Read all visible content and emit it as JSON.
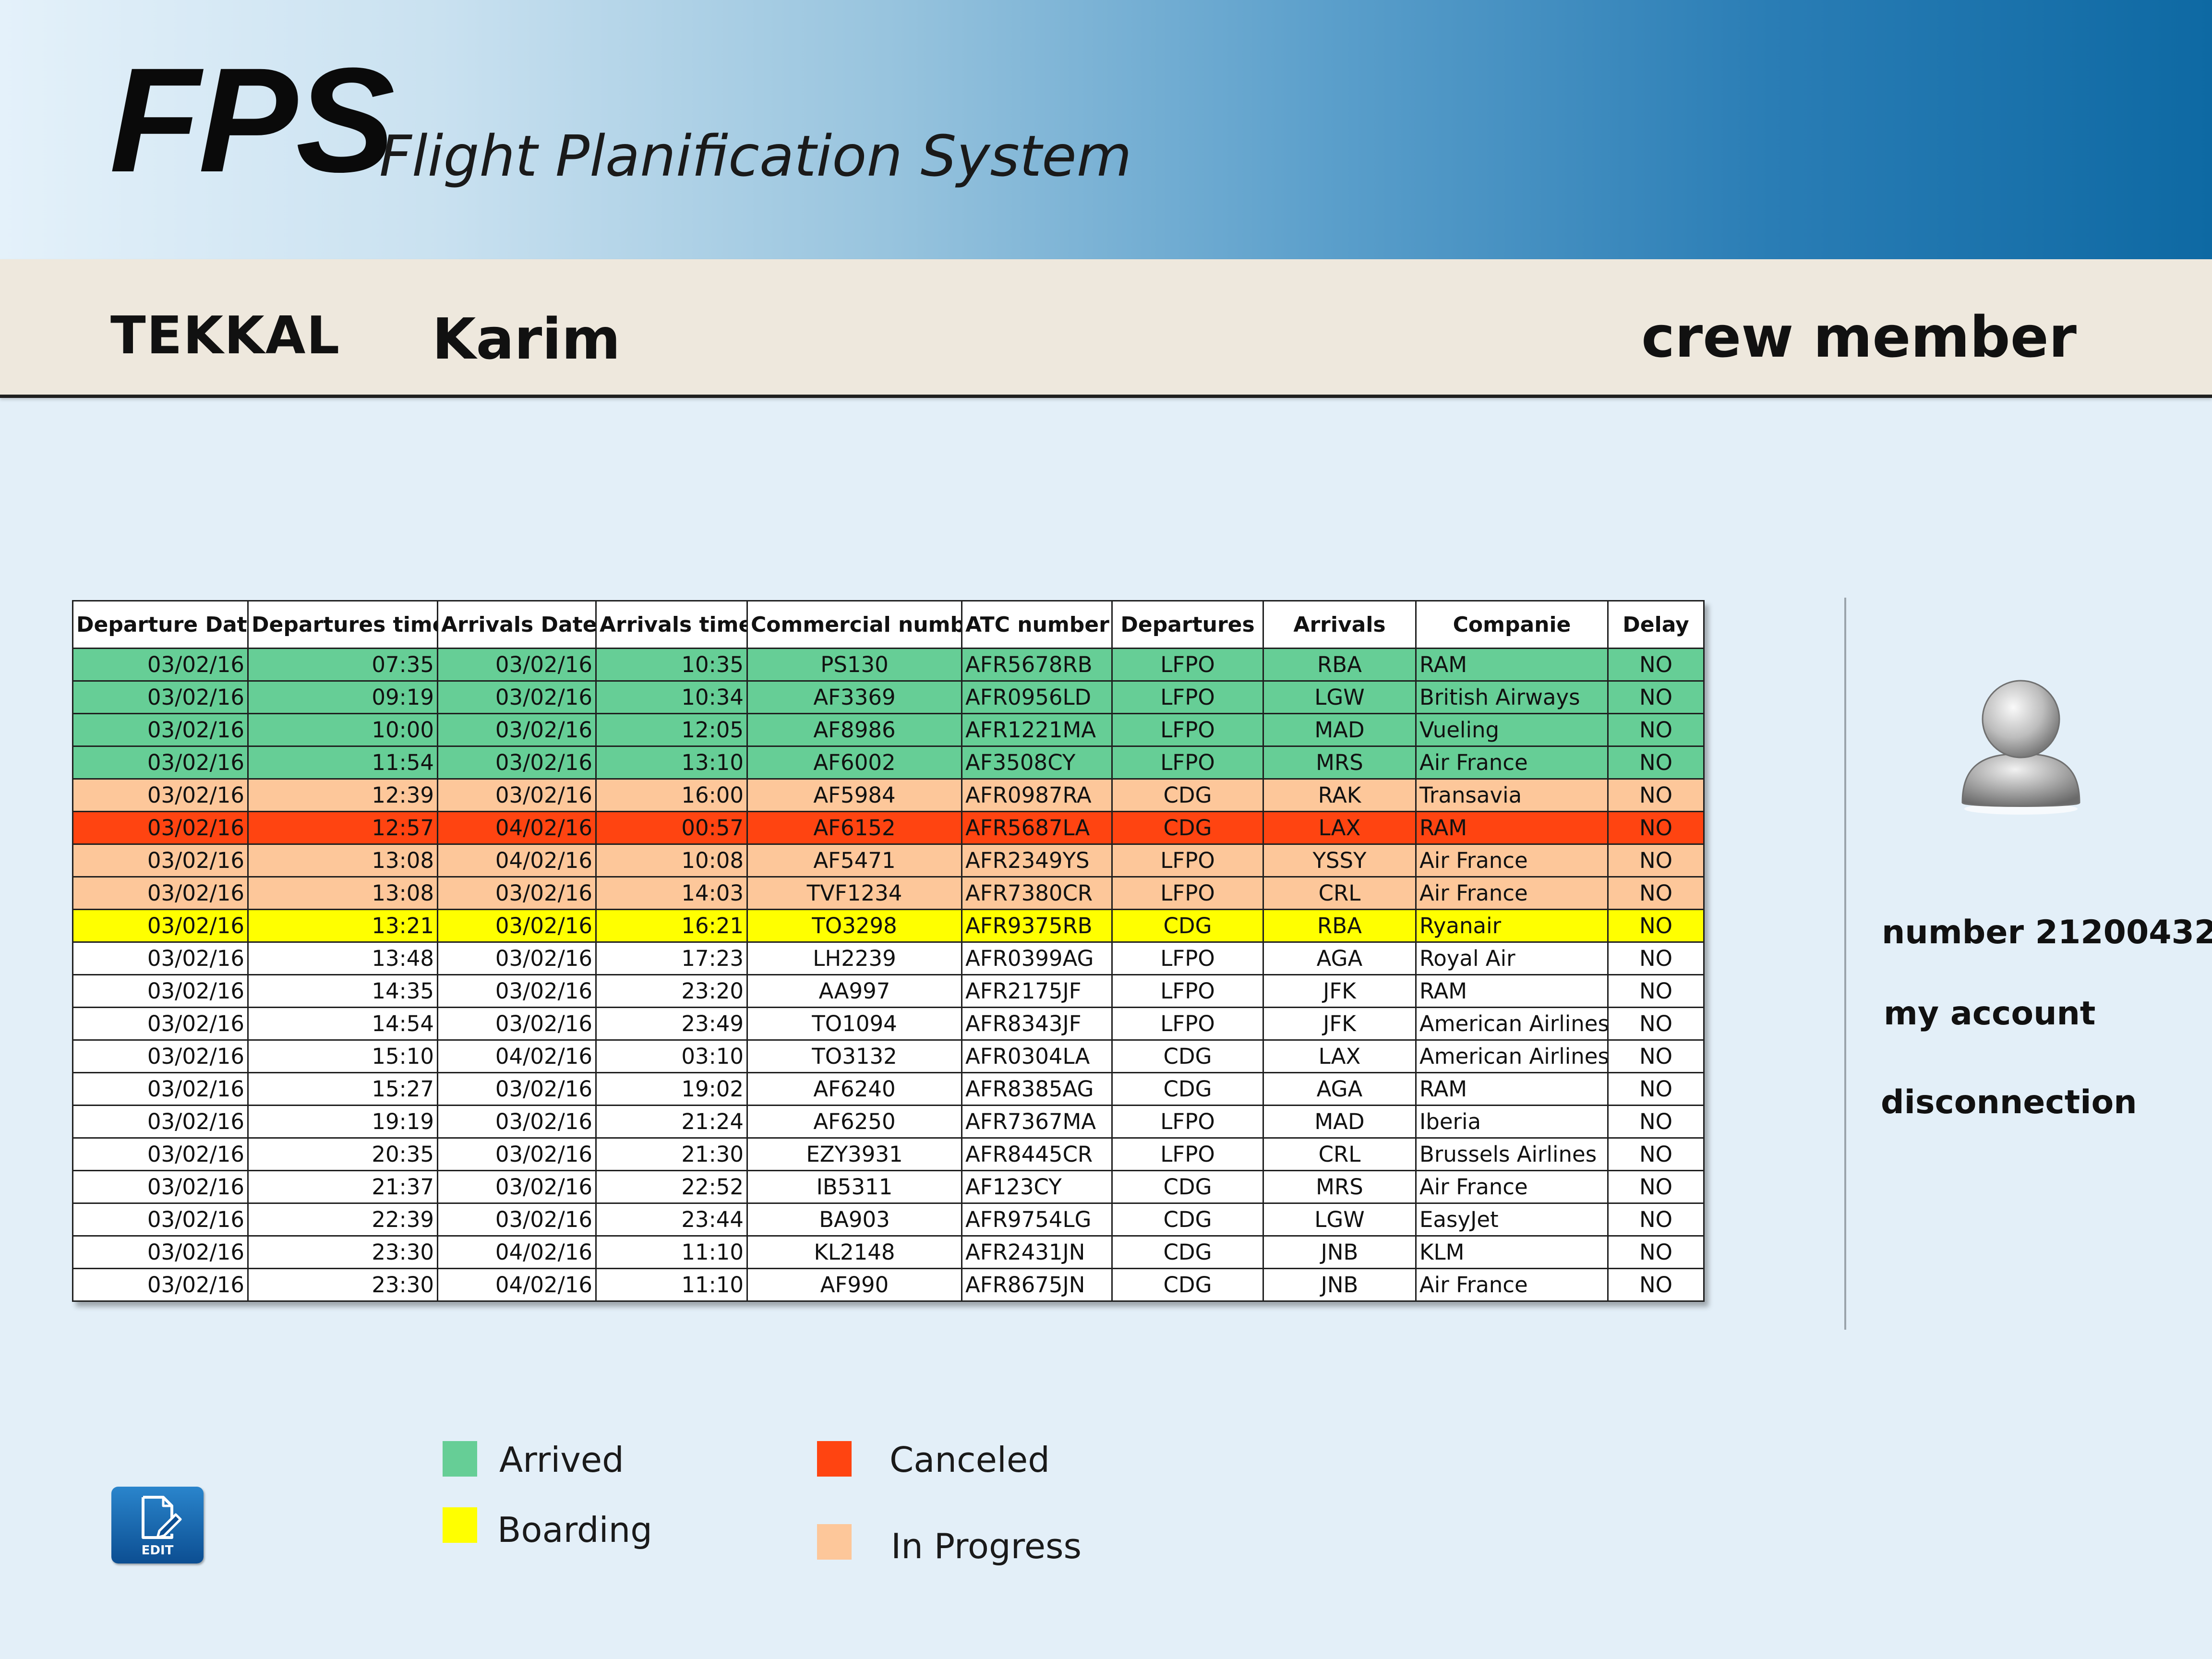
{
  "header": {
    "logo": "FPS",
    "subtitle": "Flight Planification System"
  },
  "user": {
    "last_name": "TEKKAL",
    "first_name": "Karim",
    "role": "crew member"
  },
  "table": {
    "columns": [
      "Departure Date",
      "Departures times",
      "Arrivals Date",
      "Arrivals times",
      "Commercial number",
      "ATC number",
      "Departures",
      "Arrivals",
      "Companie",
      "Delay"
    ],
    "rows": [
      {
        "status": "arrived",
        "cells": [
          "03/02/16",
          "07:35",
          "03/02/16",
          "10:35",
          "PS130",
          "AFR5678RB",
          "LFPO",
          "RBA",
          "RAM",
          "NO"
        ]
      },
      {
        "status": "arrived",
        "cells": [
          "03/02/16",
          "09:19",
          "03/02/16",
          "10:34",
          "AF3369",
          "AFR0956LD",
          "LFPO",
          "LGW",
          "British Airways",
          "NO"
        ]
      },
      {
        "status": "arrived",
        "cells": [
          "03/02/16",
          "10:00",
          "03/02/16",
          "12:05",
          "AF8986",
          "AFR1221MA",
          "LFPO",
          "MAD",
          "Vueling",
          "NO"
        ]
      },
      {
        "status": "arrived",
        "cells": [
          "03/02/16",
          "11:54",
          "03/02/16",
          "13:10",
          "AF6002",
          "AF3508CY",
          "LFPO",
          "MRS",
          "Air France",
          "NO"
        ]
      },
      {
        "status": "progress",
        "cells": [
          "03/02/16",
          "12:39",
          "03/02/16",
          "16:00",
          "AF5984",
          "AFR0987RA",
          "CDG",
          "RAK",
          "Transavia",
          "NO"
        ]
      },
      {
        "status": "canceled",
        "cells": [
          "03/02/16",
          "12:57",
          "04/02/16",
          "00:57",
          "AF6152",
          "AFR5687LA",
          "CDG",
          "LAX",
          "RAM",
          "NO"
        ]
      },
      {
        "status": "progress",
        "cells": [
          "03/02/16",
          "13:08",
          "04/02/16",
          "10:08",
          "AF5471",
          "AFR2349YS",
          "LFPO",
          "YSSY",
          "Air France",
          "NO"
        ]
      },
      {
        "status": "progress",
        "cells": [
          "03/02/16",
          "13:08",
          "03/02/16",
          "14:03",
          "TVF1234",
          "AFR7380CR",
          "LFPO",
          "CRL",
          "Air France",
          "NO"
        ]
      },
      {
        "status": "boarding",
        "cells": [
          "03/02/16",
          "13:21",
          "03/02/16",
          "16:21",
          "TO3298",
          "AFR9375RB",
          "CDG",
          "RBA",
          "Ryanair",
          "NO"
        ]
      },
      {
        "status": "normal",
        "cells": [
          "03/02/16",
          "13:48",
          "03/02/16",
          "17:23",
          "LH2239",
          "AFR0399AG",
          "LFPO",
          "AGA",
          "Royal Air",
          "NO"
        ]
      },
      {
        "status": "normal",
        "cells": [
          "03/02/16",
          "14:35",
          "03/02/16",
          "23:20",
          "AA997",
          "AFR2175JF",
          "LFPO",
          "JFK",
          "RAM",
          "NO"
        ]
      },
      {
        "status": "normal",
        "cells": [
          "03/02/16",
          "14:54",
          "03/02/16",
          "23:49",
          "TO1094",
          "AFR8343JF",
          "LFPO",
          "JFK",
          "American Airlines",
          "NO"
        ]
      },
      {
        "status": "normal",
        "cells": [
          "03/02/16",
          "15:10",
          "04/02/16",
          "03:10",
          "TO3132",
          "AFR0304LA",
          "CDG",
          "LAX",
          "American Airlines",
          "NO"
        ]
      },
      {
        "status": "normal",
        "cells": [
          "03/02/16",
          "15:27",
          "03/02/16",
          "19:02",
          "AF6240",
          "AFR8385AG",
          "CDG",
          "AGA",
          "RAM",
          "NO"
        ]
      },
      {
        "status": "normal",
        "cells": [
          "03/02/16",
          "19:19",
          "03/02/16",
          "21:24",
          "AF6250",
          "AFR7367MA",
          "LFPO",
          "MAD",
          "Iberia",
          "NO"
        ]
      },
      {
        "status": "normal",
        "cells": [
          "03/02/16",
          "20:35",
          "03/02/16",
          "21:30",
          "EZY3931",
          "AFR8445CR",
          "LFPO",
          "CRL",
          "Brussels Airlines",
          "NO"
        ]
      },
      {
        "status": "normal",
        "cells": [
          "03/02/16",
          "21:37",
          "03/02/16",
          "22:52",
          "IB5311",
          "AF123CY",
          "CDG",
          "MRS",
          "Air France",
          "NO"
        ]
      },
      {
        "status": "normal",
        "cells": [
          "03/02/16",
          "22:39",
          "03/02/16",
          "23:44",
          "BA903",
          "AFR9754LG",
          "CDG",
          "LGW",
          "EasyJet",
          "NO"
        ]
      },
      {
        "status": "normal",
        "cells": [
          "03/02/16",
          "23:30",
          "04/02/16",
          "11:10",
          "KL2148",
          "AFR2431JN",
          "CDG",
          "JNB",
          "KLM",
          "NO"
        ]
      },
      {
        "status": "normal",
        "cells": [
          "03/02/16",
          "23:30",
          "04/02/16",
          "11:10",
          "AF990",
          "AFR8675JN",
          "CDG",
          "JNB",
          "Air France",
          "NO"
        ]
      }
    ]
  },
  "sidebar": {
    "avatar_icon": "user-silhouette-icon",
    "number": "number 21200432",
    "my_account": "my account",
    "disconnection": "disconnection"
  },
  "legend": {
    "arrived": {
      "label": "Arrived",
      "color": "#66ce96"
    },
    "boarding": {
      "label": "Boarding",
      "color": "#ffff00"
    },
    "canceled": {
      "label": "Canceled",
      "color": "#ff4411"
    },
    "progress": {
      "label": "In Progress",
      "color": "#fdc79a"
    }
  },
  "edit_button": {
    "icon": "edit-document-icon",
    "label": "EDIT"
  }
}
